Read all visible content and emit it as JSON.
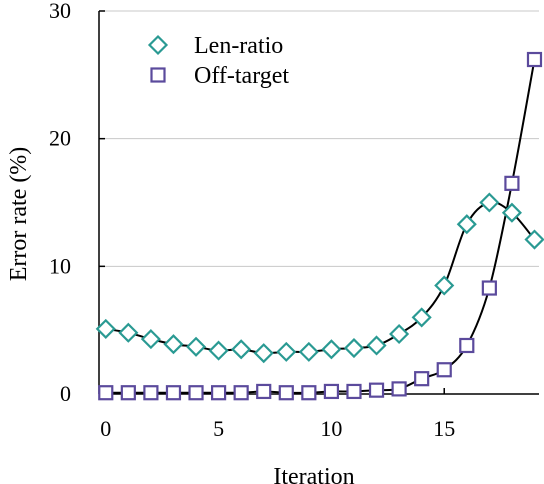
{
  "chart_data": {
    "type": "line",
    "xlabel": "Iteration",
    "ylabel": "Error rate (%)",
    "xlim": [
      -0.3,
      19.2
    ],
    "ylim": [
      0,
      30
    ],
    "xticks": [
      0,
      5,
      10,
      15
    ],
    "yticks": [
      0,
      10,
      20,
      30
    ],
    "grid": "horizontal",
    "legend_position": "top-left",
    "x": [
      0,
      1,
      2,
      3,
      4,
      5,
      6,
      7,
      8,
      9,
      10,
      11,
      12,
      13,
      14,
      15,
      16,
      17,
      18,
      19
    ],
    "series": [
      {
        "name": "Len-ratio",
        "marker": "diamond",
        "color": "#2a9a93",
        "values": [
          5.1,
          4.8,
          4.3,
          3.9,
          3.7,
          3.4,
          3.5,
          3.2,
          3.3,
          3.3,
          3.5,
          3.6,
          3.8,
          4.7,
          6.0,
          8.5,
          13.3,
          15.0,
          14.2,
          12.1
        ]
      },
      {
        "name": "Off-target",
        "marker": "square",
        "color": "#5b4a9c",
        "values": [
          0.1,
          0.1,
          0.1,
          0.1,
          0.1,
          0.1,
          0.1,
          0.2,
          0.1,
          0.1,
          0.2,
          0.2,
          0.3,
          0.4,
          1.2,
          1.9,
          3.8,
          8.3,
          16.5,
          26.2
        ]
      }
    ]
  }
}
